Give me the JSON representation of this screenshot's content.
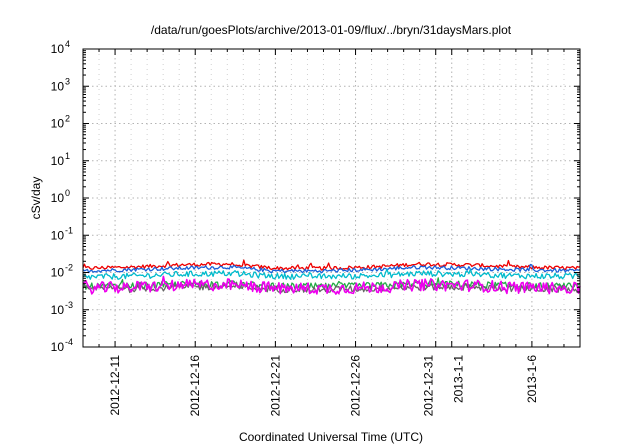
{
  "chart_data": {
    "type": "line",
    "title": "/data/run/goesPlots/archive/2013-01-09/flux/../bryn/31daysMars.plot",
    "xlabel": "Coordinated Universal Time (UTC)",
    "ylabel": "cSv/day",
    "y_scale": "log",
    "ylim": [
      0.0001,
      10000
    ],
    "xlim": [
      "2012-12-09",
      "2013-01-09"
    ],
    "grid": true,
    "legend": "none",
    "y_ticks": [
      {
        "base": "10",
        "exp": "-4",
        "value": 0.0001
      },
      {
        "base": "10",
        "exp": "-3",
        "value": 0.001
      },
      {
        "base": "10",
        "exp": "-2",
        "value": 0.01
      },
      {
        "base": "10",
        "exp": "-1",
        "value": 0.1
      },
      {
        "base": "10",
        "exp": "0",
        "value": 1
      },
      {
        "base": "10",
        "exp": "1",
        "value": 10
      },
      {
        "base": "10",
        "exp": "2",
        "value": 100
      },
      {
        "base": "10",
        "exp": "3",
        "value": 1000
      },
      {
        "base": "10",
        "exp": "4",
        "value": 10000
      }
    ],
    "x_ticks": [
      {
        "label": "2012-12-11",
        "date": "2012-12-11"
      },
      {
        "label": "2012-12-16",
        "date": "2012-12-16"
      },
      {
        "label": "2012-12-21",
        "date": "2012-12-21"
      },
      {
        "label": "2012-12-26",
        "date": "2012-12-26"
      },
      {
        "label": "2012-12-31",
        "date": "2012-12-31"
      },
      {
        "label": "2013-1-1",
        "date": "2013-01-01"
      },
      {
        "label": "2013-1-6",
        "date": "2013-01-06"
      }
    ],
    "x": [
      "2012-12-09",
      "2012-12-12",
      "2012-12-15",
      "2012-12-18",
      "2012-12-21",
      "2012-12-24",
      "2012-12-27",
      "2012-12-30",
      "2013-01-02",
      "2013-01-05",
      "2013-01-09"
    ],
    "series": [
      {
        "color": "#ee0000",
        "values": [
          0.013,
          0.014,
          0.016,
          0.017,
          0.013,
          0.013,
          0.014,
          0.017,
          0.016,
          0.014,
          0.013
        ]
      },
      {
        "color": "#1a5fd8",
        "values": [
          0.011,
          0.012,
          0.013,
          0.014,
          0.011,
          0.011,
          0.012,
          0.014,
          0.013,
          0.012,
          0.011
        ]
      },
      {
        "color": "#00bbcc",
        "values": [
          0.0075,
          0.008,
          0.009,
          0.0095,
          0.008,
          0.0078,
          0.0082,
          0.0095,
          0.009,
          0.0082,
          0.0078
        ]
      },
      {
        "color": "#22aa44",
        "values": [
          0.0042,
          0.0044,
          0.0048,
          0.005,
          0.0043,
          0.0042,
          0.0044,
          0.005,
          0.0048,
          0.0044,
          0.0042
        ]
      },
      {
        "color": "#666666",
        "values": [
          0.0036,
          0.0037,
          0.004,
          0.0042,
          0.0036,
          0.0035,
          0.0037,
          0.0041,
          0.004,
          0.0037,
          0.0035
        ]
      },
      {
        "color": "#ee00ee",
        "values": [
          0.0038,
          0.004,
          0.0045,
          0.0047,
          0.0038,
          0.0037,
          0.0039,
          0.0047,
          0.0045,
          0.004,
          0.0037
        ]
      }
    ]
  }
}
